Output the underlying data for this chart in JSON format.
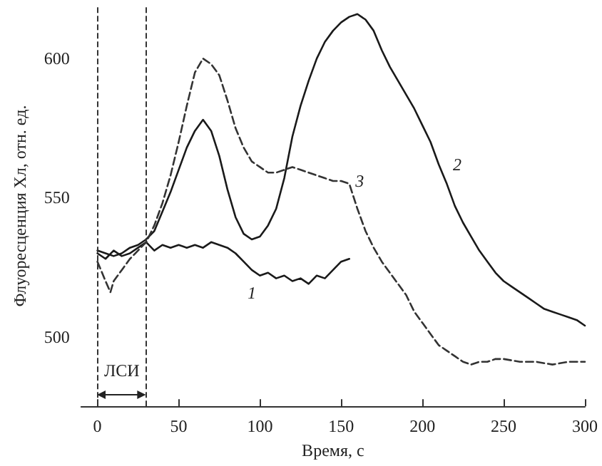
{
  "chart_data": {
    "type": "line",
    "xlabel": "Время, с",
    "ylabel": "Флуоресценция Хл, отн. ед.",
    "xlim": [
      -10,
      300
    ],
    "xticks": [
      0,
      50,
      100,
      150,
      200,
      250,
      300
    ],
    "ylim": [
      475,
      619
    ],
    "yticks": [
      500,
      550,
      600
    ],
    "grid": false,
    "legend": false,
    "marker": "none",
    "series": [
      {
        "name": "1",
        "color": "#1a1a1a",
        "line_style": "solid",
        "x": [
          0,
          5,
          10,
          15,
          20,
          25,
          30,
          35,
          40,
          45,
          50,
          55,
          60,
          65,
          70,
          75,
          80,
          85,
          90,
          95,
          100,
          105,
          110,
          115,
          120,
          125,
          130,
          135,
          140,
          145,
          150,
          155
        ],
        "values": [
          530,
          528,
          531,
          529,
          530,
          532,
          534,
          531,
          533,
          532,
          533,
          532,
          533,
          532,
          534,
          533,
          532,
          530,
          527,
          524,
          522,
          523,
          521,
          522,
          520,
          521,
          519,
          522,
          521,
          524,
          527,
          528
        ]
      },
      {
        "name": "2",
        "color": "#1a1a1a",
        "line_style": "solid",
        "x": [
          0,
          5,
          10,
          15,
          20,
          25,
          30,
          35,
          40,
          45,
          50,
          55,
          60,
          65,
          70,
          75,
          80,
          85,
          90,
          95,
          100,
          105,
          110,
          115,
          120,
          125,
          130,
          135,
          140,
          145,
          150,
          155,
          160,
          165,
          170,
          175,
          180,
          185,
          190,
          195,
          200,
          205,
          210,
          215,
          220,
          225,
          230,
          235,
          240,
          245,
          250,
          255,
          260,
          265,
          270,
          275,
          280,
          285,
          290,
          295,
          300
        ],
        "values": [
          531,
          530,
          529,
          530,
          532,
          533,
          535,
          538,
          545,
          552,
          560,
          568,
          574,
          578,
          574,
          565,
          553,
          543,
          537,
          535,
          536,
          540,
          546,
          557,
          572,
          583,
          592,
          600,
          606,
          610,
          613,
          615,
          616,
          614,
          610,
          603,
          597,
          592,
          587,
          582,
          576,
          570,
          562,
          555,
          547,
          541,
          536,
          531,
          527,
          523,
          520,
          518,
          516,
          514,
          512,
          510,
          509,
          508,
          507,
          506,
          504
        ]
      },
      {
        "name": "3",
        "color": "#333333",
        "line_style": "dashed",
        "x": [
          0,
          5,
          8,
          10,
          15,
          20,
          25,
          30,
          35,
          40,
          45,
          50,
          55,
          60,
          65,
          70,
          75,
          80,
          85,
          90,
          95,
          100,
          105,
          110,
          115,
          120,
          125,
          130,
          135,
          140,
          145,
          150,
          155,
          160,
          165,
          170,
          175,
          180,
          185,
          190,
          195,
          200,
          205,
          210,
          215,
          220,
          225,
          230,
          235,
          240,
          245,
          250,
          260,
          270,
          280,
          290,
          300
        ],
        "values": [
          527,
          520,
          516,
          520,
          524,
          528,
          531,
          534,
          540,
          548,
          558,
          570,
          583,
          595,
          600,
          598,
          594,
          585,
          575,
          568,
          563,
          561,
          559,
          559,
          560,
          561,
          560,
          559,
          558,
          557,
          556,
          556,
          555,
          546,
          538,
          532,
          527,
          523,
          519,
          515,
          509,
          505,
          501,
          497,
          495,
          493,
          491,
          490,
          491,
          491,
          492,
          492,
          491,
          491,
          490,
          491,
          491
        ]
      }
    ],
    "ref_lines": [
      {
        "axis": "x",
        "value": 0,
        "line_style": "dashed"
      },
      {
        "axis": "x",
        "value": 30,
        "line_style": "dashed"
      }
    ],
    "annotations": [
      "ЛСИ"
    ]
  }
}
